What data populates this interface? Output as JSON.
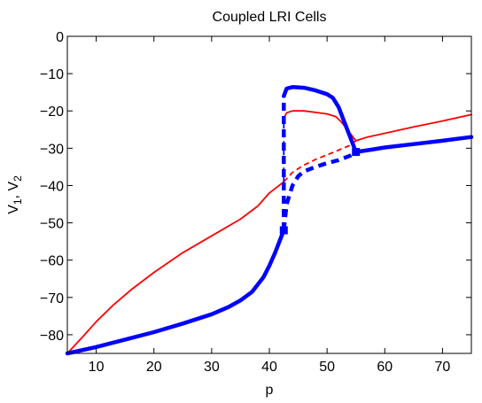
{
  "chart_data": {
    "type": "line",
    "title": "Coupled LRI Cells",
    "xlabel": "p",
    "ylabel": "V1, V2",
    "ylabel_parts": {
      "base1": "V",
      "sub1": "1",
      "sep": ", ",
      "base2": "V",
      "sub2": "2"
    },
    "xlim": [
      5,
      75
    ],
    "ylim": [
      -85,
      0
    ],
    "x_ticks": [
      10,
      20,
      30,
      40,
      50,
      60,
      70
    ],
    "y_ticks": [
      0,
      -10,
      -20,
      -30,
      -40,
      -50,
      -60,
      -70,
      -80
    ],
    "x_tick_labels": [
      "10",
      "20",
      "30",
      "40",
      "50",
      "60",
      "70"
    ],
    "y_tick_labels": [
      "0",
      "−10",
      "−20",
      "−30",
      "−40",
      "−50",
      "−60",
      "−70",
      "−80"
    ],
    "grid": false,
    "colors": {
      "red": "#ff0000",
      "blue": "#0000ff"
    },
    "series": [
      {
        "color": "#ff0000",
        "style": "solid",
        "width": "thin",
        "points": [
          [
            5,
            -85
          ],
          [
            8,
            -80
          ],
          [
            10,
            -76.5
          ],
          [
            13,
            -72
          ],
          [
            16,
            -68
          ],
          [
            20,
            -63.3
          ],
          [
            25,
            -58
          ],
          [
            30,
            -53.5
          ],
          [
            35,
            -49
          ],
          [
            38,
            -45.5
          ],
          [
            40,
            -42
          ],
          [
            42.5,
            -39
          ]
        ]
      },
      {
        "color": "#ff0000",
        "style": "solid",
        "width": "thin",
        "points": [
          [
            42.5,
            -22
          ],
          [
            43,
            -20.5
          ],
          [
            44,
            -20
          ],
          [
            46,
            -20
          ],
          [
            48,
            -20.4
          ],
          [
            50,
            -20.8
          ],
          [
            51.5,
            -21.5
          ],
          [
            52.5,
            -23
          ],
          [
            53.5,
            -25
          ],
          [
            55,
            -28
          ],
          [
            57,
            -27
          ],
          [
            60,
            -26
          ],
          [
            65,
            -24.3
          ],
          [
            70,
            -22.7
          ],
          [
            75,
            -21
          ]
        ]
      },
      {
        "color": "#ff0000",
        "style": "dashed",
        "width": "thin",
        "points": [
          [
            42.5,
            -39
          ],
          [
            44,
            -36.5
          ],
          [
            46,
            -34.5
          ],
          [
            48,
            -33
          ],
          [
            50,
            -31.8
          ],
          [
            52,
            -30.5
          ],
          [
            54,
            -29.2
          ],
          [
            55,
            -28
          ]
        ]
      },
      {
        "color": "#0000ff",
        "style": "solid",
        "width": "thick",
        "points": [
          [
            5,
            -85
          ],
          [
            10,
            -83.3
          ],
          [
            15,
            -81.3
          ],
          [
            20,
            -79.3
          ],
          [
            25,
            -77
          ],
          [
            30,
            -74.5
          ],
          [
            33,
            -72.5
          ],
          [
            35,
            -70.8
          ],
          [
            37,
            -68.5
          ],
          [
            39,
            -64.5
          ],
          [
            40,
            -61.5
          ],
          [
            41,
            -58
          ],
          [
            42.5,
            -52
          ]
        ]
      },
      {
        "color": "#0000ff",
        "style": "solid",
        "width": "thick",
        "points": [
          [
            42.5,
            -16
          ],
          [
            43,
            -14
          ],
          [
            44,
            -13.6
          ],
          [
            46,
            -13.8
          ],
          [
            48,
            -14.5
          ],
          [
            50,
            -15.5
          ],
          [
            51,
            -16.5
          ],
          [
            52,
            -19
          ],
          [
            53,
            -23
          ],
          [
            54,
            -27
          ],
          [
            55,
            -31
          ],
          [
            58,
            -30.3
          ],
          [
            60,
            -29.8
          ],
          [
            65,
            -28.9
          ],
          [
            70,
            -28
          ],
          [
            75,
            -27
          ]
        ]
      },
      {
        "color": "#0000ff",
        "style": "dashed",
        "width": "thick",
        "points": [
          [
            42.5,
            -52
          ],
          [
            43,
            -45
          ],
          [
            44,
            -40
          ],
          [
            45,
            -37.5
          ],
          [
            46,
            -36.2
          ],
          [
            48,
            -35
          ],
          [
            50,
            -34
          ],
          [
            52,
            -33.2
          ],
          [
            54,
            -32
          ],
          [
            55,
            -31
          ]
        ]
      },
      {
        "color": "#0000ff",
        "style": "dashed",
        "width": "thick",
        "points": [
          [
            42.5,
            -52
          ],
          [
            42.5,
            -16
          ]
        ]
      },
      {
        "color": "#0000ff",
        "style": "dashed",
        "width": "thin",
        "points": [
          [
            42.5,
            -39
          ],
          [
            42.5,
            -22
          ]
        ]
      }
    ],
    "markers": [
      {
        "color": "#0000ff",
        "point": [
          42.5,
          -52
        ]
      },
      {
        "color": "#0000ff",
        "point": [
          55,
          -31
        ]
      }
    ]
  }
}
